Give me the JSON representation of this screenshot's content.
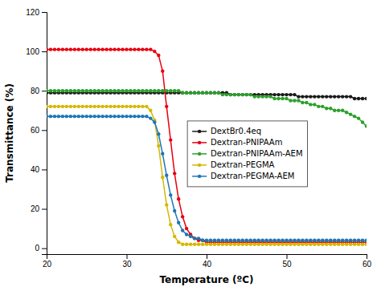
{
  "chart_data": {
    "type": "line",
    "xlabel": "Temperature (ºC)",
    "ylabel": "Transmittance (%)",
    "xlim": [
      20,
      60
    ],
    "ylim": [
      -3,
      120
    ],
    "xticks": [
      20,
      30,
      40,
      50,
      60
    ],
    "yticks": [
      0,
      20,
      40,
      60,
      80,
      100,
      120
    ],
    "legend": "center",
    "marker": "circle",
    "x": [
      20,
      20.5,
      21,
      21.5,
      22,
      22.5,
      23,
      23.5,
      24,
      24.5,
      25,
      25.5,
      26,
      26.5,
      27,
      27.5,
      28,
      28.5,
      29,
      29.5,
      30,
      30.5,
      31,
      31.5,
      32,
      32.5,
      33,
      33.5,
      34,
      34.5,
      35,
      35.5,
      36,
      36.5,
      37,
      37.5,
      38,
      38.5,
      39,
      39.5,
      40,
      40.5,
      41,
      41.5,
      42,
      42.5,
      43,
      43.5,
      44,
      44.5,
      45,
      45.5,
      46,
      46.5,
      47,
      47.5,
      48,
      48.5,
      49,
      49.5,
      50,
      50.5,
      51,
      51.5,
      52,
      52.5,
      53,
      53.5,
      54,
      54.5,
      55,
      55.5,
      56,
      56.5,
      57,
      57.5,
      58,
      58.5,
      59,
      59.5,
      60
    ],
    "series": [
      {
        "name": "DextBr0.4eq",
        "color": "#1a1a1a",
        "values": [
          79,
          79,
          79,
          79,
          79,
          79,
          79,
          79,
          79,
          79,
          79,
          79,
          79,
          79,
          79,
          79,
          79,
          79,
          79,
          79,
          79,
          79,
          79,
          79,
          79,
          79,
          79,
          79,
          79,
          79,
          79,
          79,
          79,
          79,
          79,
          79,
          79,
          79,
          79,
          79,
          79,
          79,
          79,
          79,
          79,
          79,
          78,
          78,
          78,
          78,
          78,
          78,
          78,
          78,
          78,
          78,
          78,
          78,
          78,
          78,
          78,
          78,
          78,
          77,
          77,
          77,
          77,
          77,
          77,
          77,
          77,
          77,
          77,
          77,
          77,
          77,
          77,
          76,
          76,
          76,
          76
        ]
      },
      {
        "name": "Dextran-PNIPAAm",
        "color": "#e8000e",
        "values": [
          101,
          101,
          101,
          101,
          101,
          101,
          101,
          101,
          101,
          101,
          101,
          101,
          101,
          101,
          101,
          101,
          101,
          101,
          101,
          101,
          101,
          101,
          101,
          101,
          101,
          101,
          101,
          100,
          98,
          90,
          72,
          55,
          38,
          25,
          16,
          10,
          7,
          5,
          4,
          4,
          3,
          3,
          3,
          3,
          3,
          3,
          3,
          3,
          3,
          3,
          3,
          3,
          3,
          3,
          3,
          3,
          3,
          3,
          3,
          3,
          3,
          3,
          3,
          3,
          3,
          3,
          3,
          3,
          3,
          3,
          3,
          3,
          3,
          3,
          3,
          3,
          3,
          3,
          3,
          3,
          3
        ]
      },
      {
        "name": "Dextran-PNIPAAm-AEM",
        "color": "#2ca02c",
        "values": [
          80,
          80,
          80,
          80,
          80,
          80,
          80,
          80,
          80,
          80,
          80,
          80,
          80,
          80,
          80,
          80,
          80,
          80,
          80,
          80,
          80,
          80,
          80,
          80,
          80,
          80,
          80,
          80,
          80,
          80,
          80,
          80,
          80,
          80,
          79,
          79,
          79,
          79,
          79,
          79,
          79,
          79,
          79,
          79,
          78,
          78,
          78,
          78,
          78,
          78,
          78,
          78,
          77,
          77,
          77,
          77,
          77,
          76,
          76,
          76,
          76,
          75,
          75,
          75,
          74,
          74,
          73,
          73,
          72,
          72,
          71,
          71,
          70,
          70,
          70,
          69,
          68,
          67,
          66,
          64,
          62
        ]
      },
      {
        "name": "Dextran-PEGMA",
        "color": "#d4b800",
        "values": [
          72,
          72,
          72,
          72,
          72,
          72,
          72,
          72,
          72,
          72,
          72,
          72,
          72,
          72,
          72,
          72,
          72,
          72,
          72,
          72,
          72,
          72,
          72,
          72,
          72,
          72,
          70,
          65,
          52,
          36,
          22,
          12,
          6,
          3,
          2,
          2,
          2,
          2,
          2,
          2,
          2,
          2,
          2,
          2,
          2,
          2,
          2,
          2,
          2,
          2,
          2,
          2,
          2,
          2,
          2,
          2,
          2,
          2,
          2,
          2,
          2,
          2,
          2,
          2,
          2,
          2,
          2,
          2,
          2,
          2,
          2,
          2,
          2,
          2,
          2,
          2,
          2,
          2,
          2,
          2,
          2
        ]
      },
      {
        "name": "Dextran-PEGMA-AEM",
        "color": "#1f77b4",
        "values": [
          67,
          67,
          67,
          67,
          67,
          67,
          67,
          67,
          67,
          67,
          67,
          67,
          67,
          67,
          67,
          67,
          67,
          67,
          67,
          67,
          67,
          67,
          67,
          67,
          67,
          67,
          66,
          64,
          58,
          48,
          37,
          27,
          19,
          13,
          9,
          7,
          6,
          5,
          5,
          4,
          4,
          4,
          4,
          4,
          4,
          4,
          4,
          4,
          4,
          4,
          4,
          4,
          4,
          4,
          4,
          4,
          4,
          4,
          4,
          4,
          4,
          4,
          4,
          4,
          4,
          4,
          4,
          4,
          4,
          4,
          4,
          4,
          4,
          4,
          4,
          4,
          4,
          4,
          4,
          4,
          4
        ]
      }
    ]
  }
}
